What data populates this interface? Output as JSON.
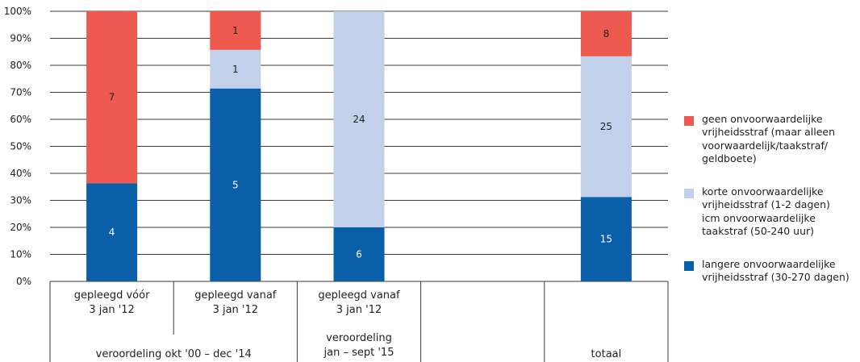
{
  "chart_data": {
    "type": "bar",
    "stacked": true,
    "normalized_to_percent": true,
    "y_ticks": [
      "0%",
      "10%",
      "20%",
      "30%",
      "40%",
      "50%",
      "60%",
      "70%",
      "80%",
      "90%",
      "100%"
    ],
    "ylim": [
      0,
      100
    ],
    "grid": true,
    "legend_position": "right",
    "colors": {
      "geen": "#ee5a4f",
      "korte": "#c3d0ea",
      "langere": "#0b5ea8"
    },
    "categories": [
      {
        "sub": [
          "gepleegd vóór",
          "3 jan '12"
        ]
      },
      {
        "sub": [
          "gepleegd vanaf",
          "3 jan '12"
        ]
      },
      {
        "sub": [
          "gepleegd vanaf",
          "3 jan '12"
        ]
      },
      {
        "sub": []
      },
      {
        "sub": []
      }
    ],
    "groups": [
      {
        "label": [
          "veroordeling okt '00 – dec '14"
        ]
      },
      {
        "label": [
          "veroordeling",
          "jan – sept '15"
        ]
      },
      {
        "label": []
      },
      {
        "label": [
          "totaal"
        ]
      }
    ],
    "series": [
      {
        "key": "langere",
        "values": [
          4,
          5,
          6,
          null,
          15
        ],
        "labels": [
          "4",
          "5",
          "6",
          "",
          "15"
        ]
      },
      {
        "key": "korte",
        "values": [
          0,
          1,
          24,
          null,
          25
        ],
        "labels": [
          "",
          "1",
          "24",
          "",
          "25"
        ]
      },
      {
        "key": "geen",
        "values": [
          7,
          1,
          0,
          null,
          8
        ],
        "labels": [
          "7",
          "1",
          "",
          "",
          "8"
        ]
      }
    ],
    "legend": [
      {
        "key": "geen",
        "lines": [
          "geen onvoorwaardelijke",
          "vrijheidsstraf (maar alleen",
          "voorwaardelijk/taakstraf/",
          "geldboete)"
        ]
      },
      {
        "key": "korte",
        "lines": [
          "korte onvoorwaardelijke",
          "vrijheidsstraf (1-2 dagen)",
          "icm onvoorwaardelijke",
          "taakstraf (50-240 uur)"
        ]
      },
      {
        "key": "langere",
        "lines": [
          "langere onvoorwaardelijke",
          "vrijheidsstraf (30-270 dagen)"
        ]
      }
    ]
  }
}
